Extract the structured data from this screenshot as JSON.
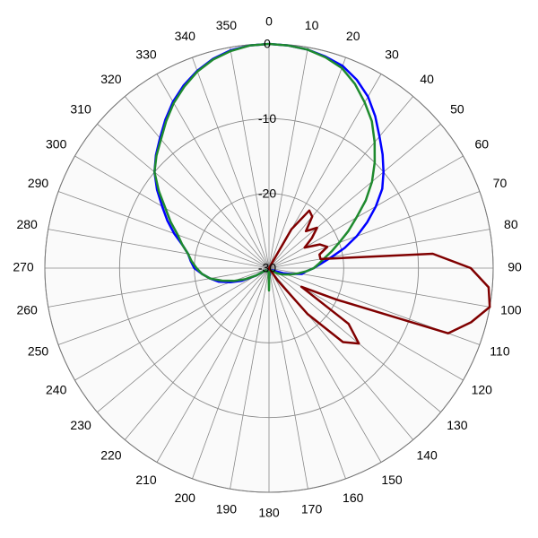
{
  "chart_data": {
    "type": "polar",
    "theta_direction": "clockwise",
    "theta_zero": "top",
    "rlim": [
      -30,
      0
    ],
    "rticks": [
      -30,
      -20,
      -10,
      0
    ],
    "thetaticks": [
      0,
      10,
      20,
      30,
      40,
      50,
      60,
      70,
      80,
      90,
      100,
      110,
      120,
      130,
      140,
      150,
      160,
      170,
      180,
      190,
      200,
      210,
      220,
      230,
      240,
      250,
      260,
      270,
      280,
      290,
      300,
      310,
      320,
      330,
      340,
      350
    ],
    "grid": true,
    "theta": [
      0,
      5,
      10,
      15,
      20,
      25,
      30,
      35,
      40,
      45,
      50,
      55,
      60,
      65,
      70,
      75,
      80,
      85,
      90,
      95,
      100,
      105,
      110,
      115,
      120,
      125,
      130,
      135,
      140,
      145,
      150,
      155,
      160,
      165,
      170,
      175,
      180,
      185,
      190,
      195,
      200,
      205,
      210,
      215,
      220,
      225,
      230,
      235,
      240,
      245,
      250,
      255,
      260,
      265,
      270,
      275,
      280,
      285,
      290,
      295,
      300,
      305,
      310,
      315,
      320,
      325,
      330,
      335,
      340,
      345,
      350,
      355
    ],
    "series": [
      {
        "color": "#0000ff",
        "values": [
          0,
          -0.1,
          -0.3,
          -0.7,
          -1.2,
          -2.2,
          -3.5,
          -5.2,
          -7,
          -8.5,
          -10,
          -11.5,
          -13.5,
          -15.5,
          -17.5,
          -19.5,
          -21.5,
          -23,
          -24,
          -25,
          -25.5,
          -27,
          -28,
          -29,
          -29.5,
          -29.5,
          -29.5,
          -29.5,
          -29.5,
          -29.5,
          -29.5,
          -29.5,
          -29.5,
          -29.5,
          -29.5,
          -29,
          -29.5,
          -29.5,
          -29.5,
          -29.5,
          -29.5,
          -29.5,
          -29.5,
          -29.5,
          -29.5,
          -29.5,
          -29.5,
          -29.5,
          -28,
          -26,
          -24.5,
          -23,
          -22,
          -21,
          -20,
          -19.5,
          -19,
          -18,
          -16.5,
          -15,
          -13.5,
          -11.7,
          -10,
          -8.6,
          -7.3,
          -5.8,
          -4.3,
          -3,
          -1.9,
          -1,
          -0.4,
          -0.1
        ]
      },
      {
        "color": "#1e8a2e",
        "values": [
          0,
          -0.1,
          -0.3,
          -0.8,
          -1.5,
          -2.8,
          -4.4,
          -6,
          -8,
          -10,
          -12,
          -14.2,
          -16.5,
          -18.3,
          -20,
          -21.3,
          -22.5,
          -23.3,
          -24,
          -25,
          -26,
          -26.8,
          -27.5,
          -28,
          -28.5,
          -29,
          -29.5,
          -29.5,
          -29.5,
          -29.5,
          -29.5,
          -29.5,
          -29.5,
          -29.5,
          -29.5,
          -29.5,
          -27,
          -29.5,
          -29.5,
          -29.5,
          -29.5,
          -29.5,
          -29.5,
          -29.5,
          -29.5,
          -29.5,
          -29.5,
          -29.5,
          -28,
          -26.5,
          -25,
          -23.5,
          -22,
          -21,
          -20.3,
          -19.6,
          -19,
          -18,
          -17,
          -15.5,
          -14,
          -12,
          -10,
          -8.7,
          -7.5,
          -6,
          -4.5,
          -3.2,
          -2,
          -1.1,
          -0.5,
          -0.1
        ]
      },
      {
        "color": "#800000",
        "values": [
          -30,
          -30,
          -30,
          -30,
          -30,
          -30,
          -24,
          -20.6,
          -21,
          -23,
          -21.6,
          -23,
          -24.5,
          -22.5,
          -21.7,
          -23,
          -23,
          -8,
          -3,
          -0.5,
          0,
          -2,
          -4.5,
          -20,
          -25,
          -17,
          -14.3,
          -16,
          -22,
          -28,
          -30,
          -30,
          -30,
          -30,
          -30,
          -30,
          -30,
          -30,
          -30,
          -30,
          -30,
          -30,
          -30,
          -30,
          -30,
          -30,
          -30,
          -30,
          -30,
          -30,
          -30,
          -30,
          -30,
          -30,
          -30,
          -30,
          -30,
          -30,
          -30,
          -30,
          -30,
          -30,
          -30,
          -30,
          -30,
          -30,
          -30,
          -30,
          -30,
          -30,
          -30,
          -30
        ]
      }
    ]
  }
}
